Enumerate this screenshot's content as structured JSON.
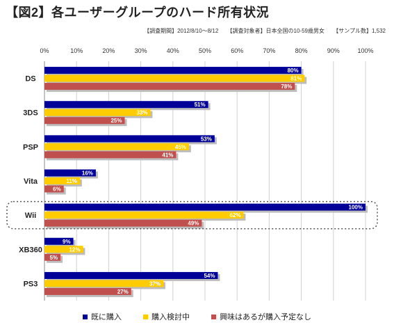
{
  "header": {
    "title": "【図2】各ユーザーグループのハード所有状況",
    "meta_period": "【調査期間】2012/8/10～8/12",
    "meta_target": "【調査対象者】日本全国の10-59歳男女",
    "meta_sample": "【サンプル数】1,532"
  },
  "colors": {
    "owned": "#000099",
    "considering": "#FFCC00",
    "interested": "#C0504D"
  },
  "chart_data": {
    "type": "bar",
    "orientation": "horizontal",
    "categories": [
      "DS",
      "3DS",
      "PSP",
      "Vita",
      "Wii",
      "XB360",
      "PS3"
    ],
    "series": [
      {
        "name": "既に購入",
        "values": [
          80,
          51,
          53,
          16,
          100,
          9,
          54
        ]
      },
      {
        "name": "購入検討中",
        "values": [
          81,
          33,
          45,
          11,
          62,
          12,
          37
        ]
      },
      {
        "name": "興味はあるが購入予定なし",
        "values": [
          78,
          25,
          41,
          6,
          49,
          5,
          27
        ]
      }
    ],
    "xlim": [
      0,
      100
    ],
    "x_ticks": [
      "0%",
      "10%",
      "20%",
      "30%",
      "40%",
      "50%",
      "60%",
      "70%",
      "80%",
      "90%",
      "100%"
    ],
    "value_suffix": "%",
    "highlighted_category": "Wii",
    "grid": true,
    "legend_position": "bottom"
  }
}
